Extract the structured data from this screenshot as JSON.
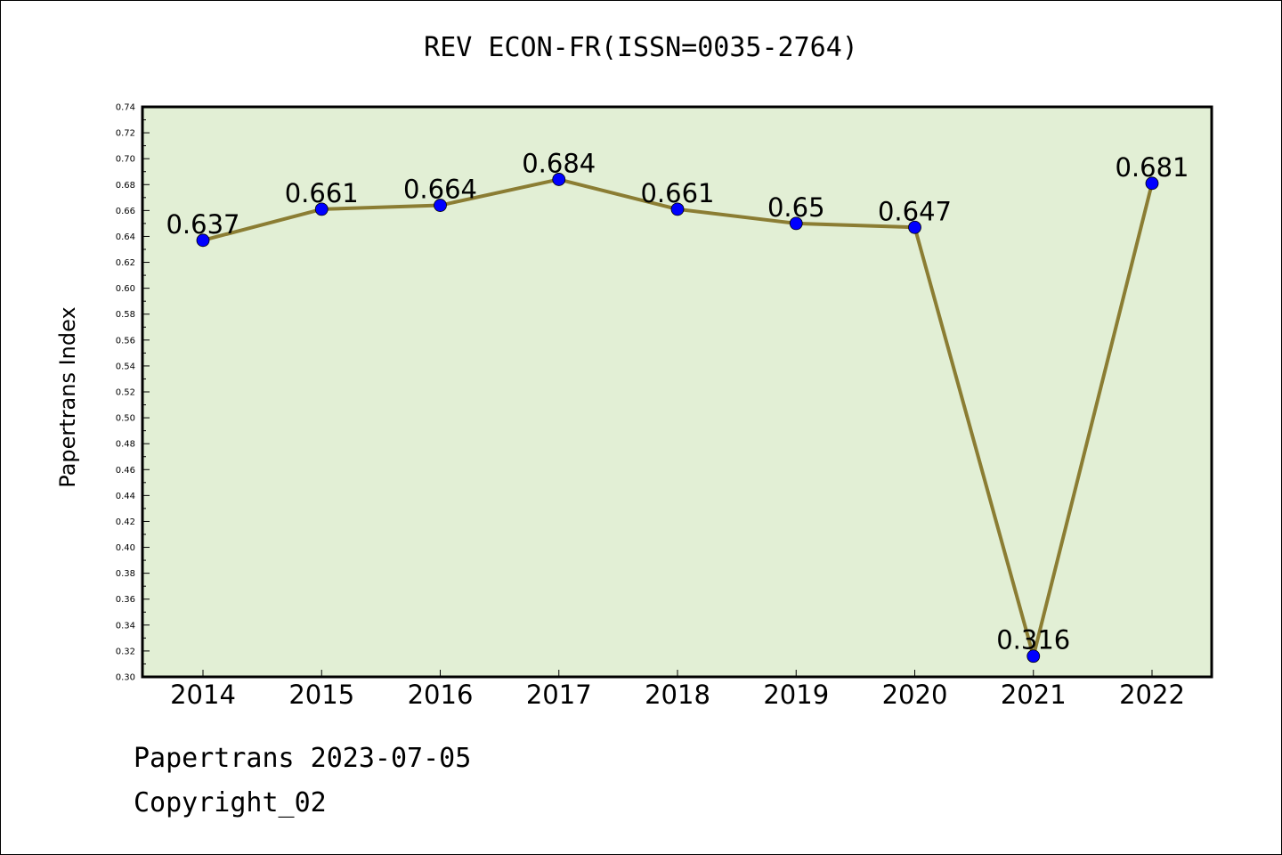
{
  "footer": {
    "line1": "Papertrans 2023-07-05",
    "line2": "Copyright_02"
  },
  "colors": {
    "plot_background": "#e2efd5",
    "line": "#8b7d33",
    "marker": "#0000ff"
  },
  "chart_data": {
    "type": "line",
    "title": "REV ECON-FR(ISSN=0035-2764)",
    "xlabel": "",
    "ylabel": "Papertrans Index",
    "categories": [
      "2014",
      "2015",
      "2016",
      "2017",
      "2018",
      "2019",
      "2020",
      "2021",
      "2022"
    ],
    "series": [
      {
        "values": [
          0.637,
          0.661,
          0.664,
          0.684,
          0.661,
          0.65,
          0.647,
          0.316,
          0.681
        ],
        "labels": [
          "0.637",
          "0.661",
          "0.664",
          "0.684",
          "0.661",
          "0.65",
          "0.647",
          "0.316",
          "0.681"
        ]
      }
    ],
    "ylim": [
      0.3,
      0.74
    ],
    "yticks": [
      "0.30",
      "0.32",
      "0.34",
      "0.36",
      "0.38",
      "0.40",
      "0.42",
      "0.44",
      "0.46",
      "0.48",
      "0.50",
      "0.52",
      "0.54",
      "0.56",
      "0.58",
      "0.60",
      "0.62",
      "0.64",
      "0.66",
      "0.68",
      "0.70",
      "0.72",
      "0.74"
    ],
    "grid": false,
    "legend": "none"
  }
}
